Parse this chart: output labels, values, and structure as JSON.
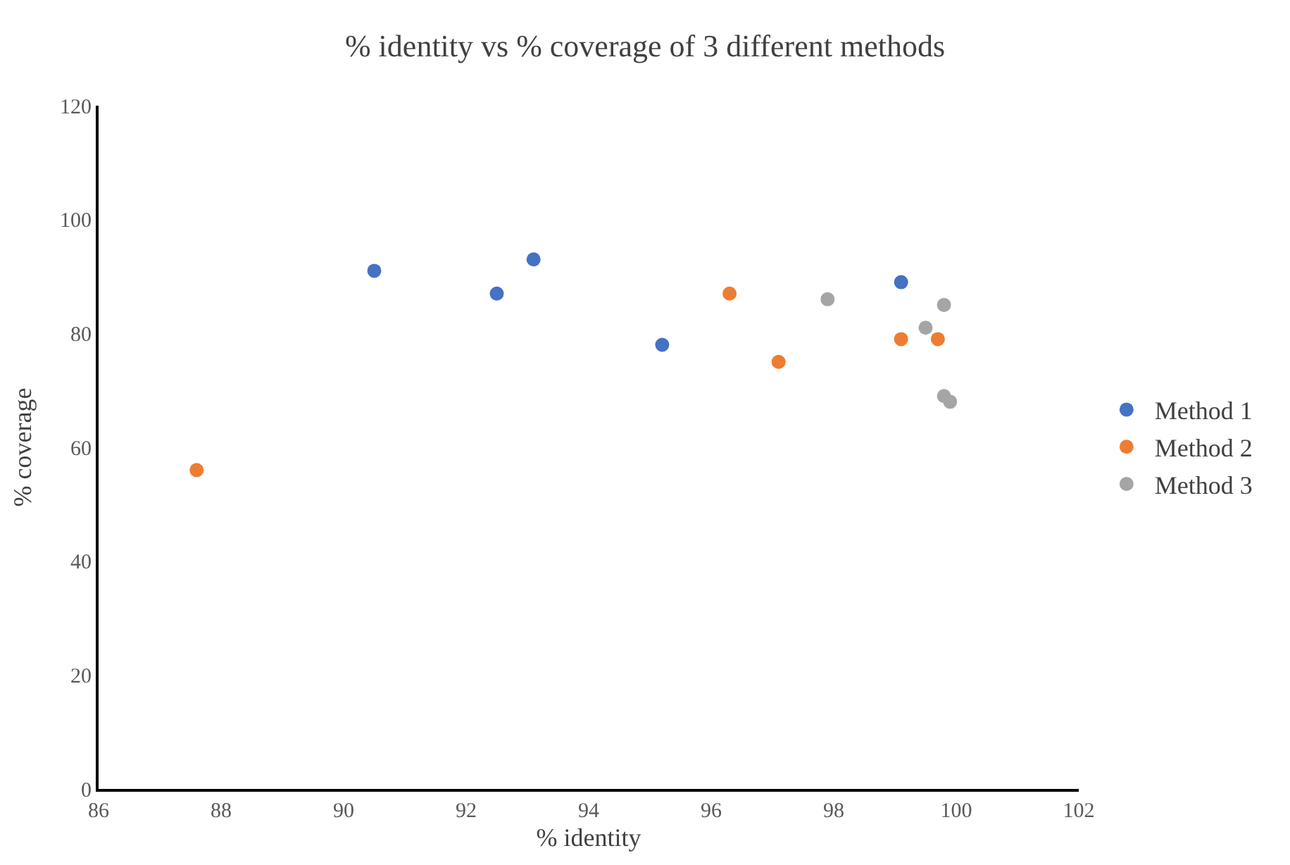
{
  "chart_data": {
    "type": "scatter",
    "title": "% identity vs % coverage of 3 different methods",
    "xlabel": "% identity",
    "ylabel": "% coverage",
    "series": [
      {
        "name": "Method 1",
        "color": "#4472c4",
        "x": [
          90.5,
          92.5,
          93.1,
          95.2,
          99.1
        ],
        "values": [
          91,
          87,
          93,
          78,
          89
        ]
      },
      {
        "name": "Method 2",
        "color": "#ed7d31",
        "x": [
          87.6,
          96.3,
          97.1,
          99.1,
          99.7
        ],
        "values": [
          56,
          87,
          75,
          79,
          79
        ]
      },
      {
        "name": "Method 3",
        "color": "#a5a5a5",
        "x": [
          97.9,
          99.5,
          99.8,
          99.8,
          99.9
        ],
        "values": [
          86,
          81,
          85,
          69,
          68
        ]
      }
    ],
    "xlim": [
      86,
      102
    ],
    "xticks": [
      86,
      88,
      90,
      92,
      94,
      96,
      98,
      100,
      102
    ],
    "ylim": [
      0,
      120
    ],
    "yticks": [
      0,
      20,
      40,
      60,
      80,
      100,
      120
    ],
    "legend": "right",
    "marker": "circle"
  }
}
